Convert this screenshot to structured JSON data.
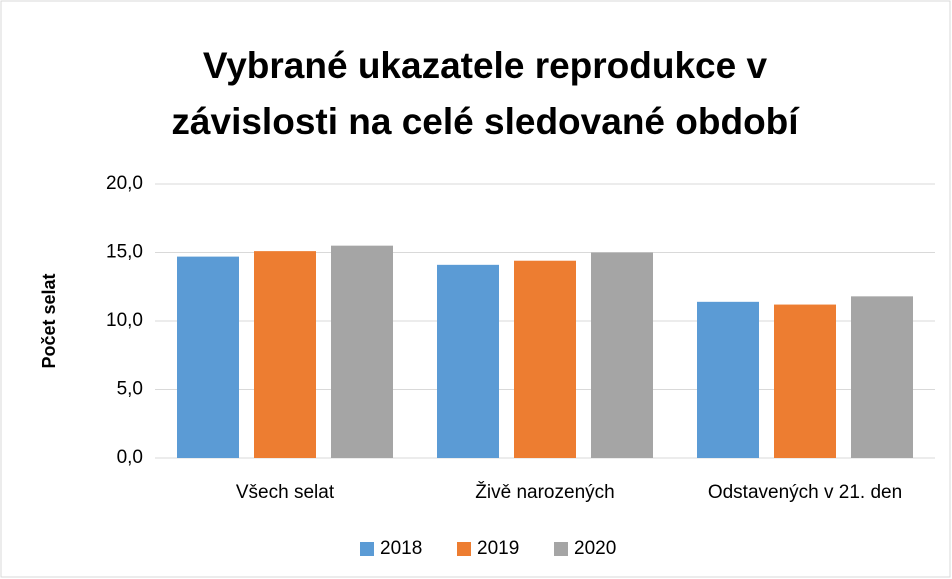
{
  "chart_data": {
    "type": "bar",
    "title": [
      "Vybrané ukazatele reprodukce v",
      "závislosti na celé sledované období"
    ],
    "y_label": "Počet selat",
    "categories": [
      "Všech selat",
      "Živě narozených",
      "Odstavených v 21. den"
    ],
    "series": [
      {
        "name": "2018",
        "color": "#5b9bd5",
        "values": [
          14.7,
          14.1,
          11.4
        ]
      },
      {
        "name": "2019",
        "color": "#ed7d31",
        "values": [
          15.1,
          14.4,
          11.2
        ]
      },
      {
        "name": "2020",
        "color": "#a5a5a5",
        "values": [
          15.5,
          15.0,
          11.8
        ]
      }
    ],
    "ylim": [
      0,
      20
    ],
    "yticks": [
      {
        "value": 0,
        "label": "0,0"
      },
      {
        "value": 5,
        "label": "5,0"
      },
      {
        "value": 10,
        "label": "10,0"
      },
      {
        "value": 15,
        "label": "15,0"
      },
      {
        "value": 20,
        "label": "20,0"
      }
    ],
    "grid": true,
    "legend": "bottom"
  }
}
